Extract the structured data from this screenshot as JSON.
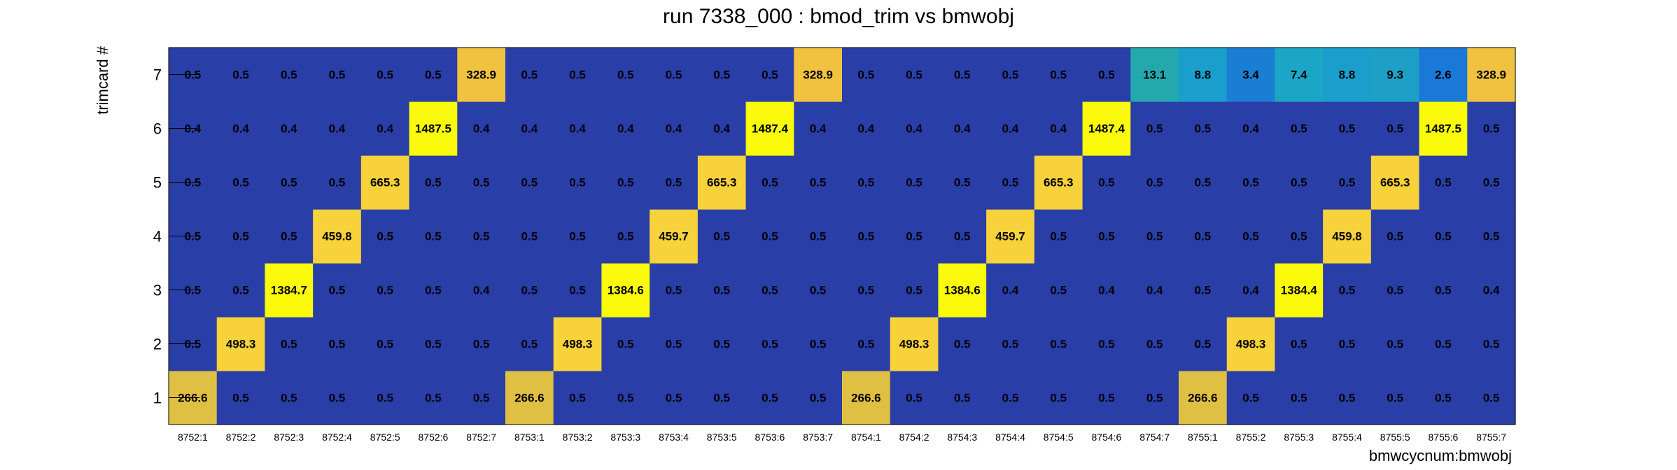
{
  "chart_data": {
    "type": "heatmap",
    "title": "run 7338_000 : bmod_trim vs bmwobj",
    "xlabel": "bmwcycnum:bmwobj",
    "ylabel": "trimcard #",
    "x_categories": [
      "8752:1",
      "8752:2",
      "8752:3",
      "8752:4",
      "8752:5",
      "8752:6",
      "8752:7",
      "8753:1",
      "8753:2",
      "8753:3",
      "8753:4",
      "8753:5",
      "8753:6",
      "8753:7",
      "8754:1",
      "8754:2",
      "8754:3",
      "8754:4",
      "8754:5",
      "8754:6",
      "8754:7",
      "8755:1",
      "8755:2",
      "8755:3",
      "8755:4",
      "8755:5",
      "8755:6",
      "8755:7"
    ],
    "y_categories": [
      "1",
      "2",
      "3",
      "4",
      "5",
      "6",
      "7"
    ],
    "values": [
      [
        "266.6",
        "0.5",
        "0.5",
        "0.5",
        "0.5",
        "0.5",
        "0.5",
        "266.6",
        "0.5",
        "0.5",
        "0.5",
        "0.5",
        "0.5",
        "0.5",
        "266.6",
        "0.5",
        "0.5",
        "0.5",
        "0.5",
        "0.5",
        "0.5",
        "266.6",
        "0.5",
        "0.5",
        "0.5",
        "0.5",
        "0.5",
        "0.5"
      ],
      [
        "0.5",
        "498.3",
        "0.5",
        "0.5",
        "0.5",
        "0.5",
        "0.5",
        "0.5",
        "498.3",
        "0.5",
        "0.5",
        "0.5",
        "0.5",
        "0.5",
        "0.5",
        "498.3",
        "0.5",
        "0.5",
        "0.5",
        "0.5",
        "0.5",
        "0.5",
        "498.3",
        "0.5",
        "0.5",
        "0.5",
        "0.5",
        "0.5"
      ],
      [
        "0.5",
        "0.5",
        "1384.7",
        "0.5",
        "0.5",
        "0.5",
        "0.4",
        "0.5",
        "0.5",
        "1384.6",
        "0.5",
        "0.5",
        "0.5",
        "0.5",
        "0.5",
        "0.5",
        "1384.6",
        "0.4",
        "0.5",
        "0.4",
        "0.4",
        "0.5",
        "0.4",
        "1384.4",
        "0.5",
        "0.5",
        "0.5",
        "0.4"
      ],
      [
        "0.5",
        "0.5",
        "0.5",
        "459.8",
        "0.5",
        "0.5",
        "0.5",
        "0.5",
        "0.5",
        "0.5",
        "459.7",
        "0.5",
        "0.5",
        "0.5",
        "0.5",
        "0.5",
        "0.5",
        "459.7",
        "0.5",
        "0.5",
        "0.5",
        "0.5",
        "0.5",
        "0.5",
        "459.8",
        "0.5",
        "0.5",
        "0.5"
      ],
      [
        "0.5",
        "0.5",
        "0.5",
        "0.5",
        "665.3",
        "0.5",
        "0.5",
        "0.5",
        "0.5",
        "0.5",
        "0.5",
        "665.3",
        "0.5",
        "0.5",
        "0.5",
        "0.5",
        "0.5",
        "0.5",
        "665.3",
        "0.5",
        "0.5",
        "0.5",
        "0.5",
        "0.5",
        "0.5",
        "665.3",
        "0.5",
        "0.5"
      ],
      [
        "0.4",
        "0.4",
        "0.4",
        "0.4",
        "0.4",
        "1487.5",
        "0.4",
        "0.4",
        "0.4",
        "0.4",
        "0.4",
        "0.4",
        "1487.4",
        "0.4",
        "0.4",
        "0.4",
        "0.4",
        "0.4",
        "0.4",
        "1487.4",
        "0.5",
        "0.5",
        "0.4",
        "0.5",
        "0.5",
        "0.5",
        "1487.5",
        "0.5"
      ],
      [
        "0.5",
        "0.5",
        "0.5",
        "0.5",
        "0.5",
        "0.5",
        "328.9",
        "0.5",
        "0.5",
        "0.5",
        "0.5",
        "0.5",
        "0.5",
        "328.9",
        "0.5",
        "0.5",
        "0.5",
        "0.5",
        "0.5",
        "0.5",
        "13.1",
        "8.8",
        "3.4",
        "7.4",
        "8.8",
        "9.3",
        "2.6",
        "328.9"
      ]
    ],
    "colors": {
      "low": "#2a3ea7",
      "v13": "#23a8ad",
      "v9": "#1e9fc6",
      "v8": "#1a9ecb",
      "v7": "#1aa6c4",
      "v3": "#1a7fd4",
      "v2": "#1a78d8",
      "v266": "#e0c043",
      "v328": "#f0c23f",
      "mid": "#f8d23a",
      "high": "#fafa0a"
    }
  }
}
